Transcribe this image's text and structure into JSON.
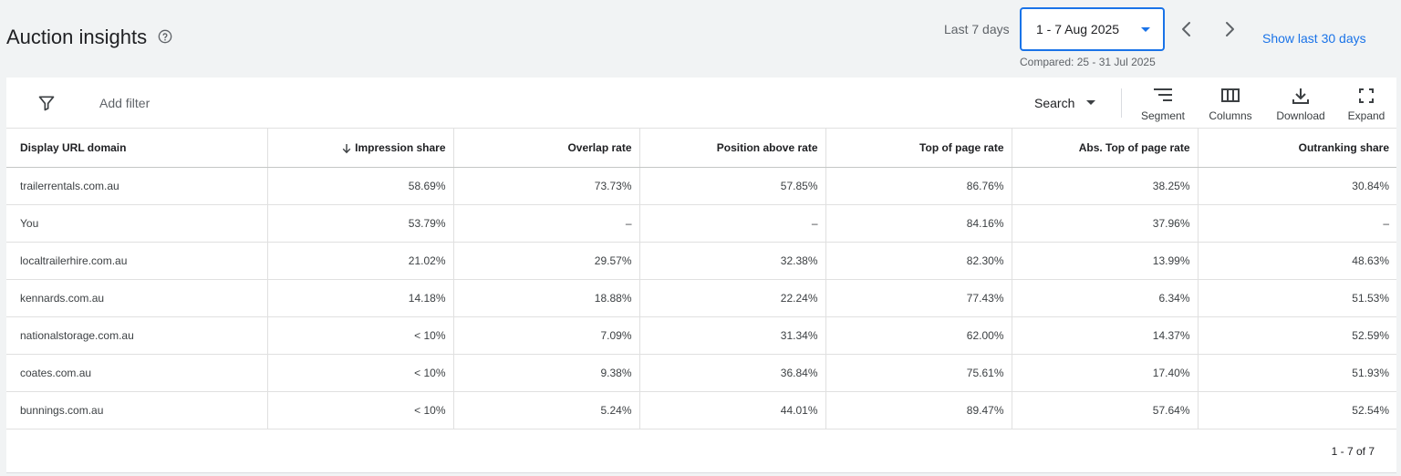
{
  "header": {
    "title": "Auction insights",
    "range_label": "Last 7 days",
    "date_range": "1 - 7 Aug 2025",
    "compared": "Compared: 25 - 31 Jul 2025",
    "show_30_label": "Show last 30 days"
  },
  "toolbar": {
    "add_filter": "Add filter",
    "segment_select": "Search",
    "segment_label": "Segment",
    "columns_label": "Columns",
    "download_label": "Download",
    "expand_label": "Expand"
  },
  "table": {
    "columns": [
      "Display URL domain",
      "Impression share",
      "Overlap rate",
      "Position above rate",
      "Top of page rate",
      "Abs. Top of page rate",
      "Outranking share"
    ],
    "sorted_column": "Impression share",
    "rows": [
      [
        "trailerrentals.com.au",
        "58.69%",
        "73.73%",
        "57.85%",
        "86.76%",
        "38.25%",
        "30.84%"
      ],
      [
        "You",
        "53.79%",
        "–",
        "–",
        "84.16%",
        "37.96%",
        "–"
      ],
      [
        "localtrailerhire.com.au",
        "21.02%",
        "29.57%",
        "32.38%",
        "82.30%",
        "13.99%",
        "48.63%"
      ],
      [
        "kennards.com.au",
        "14.18%",
        "18.88%",
        "22.24%",
        "77.43%",
        "6.34%",
        "51.53%"
      ],
      [
        "nationalstorage.com.au",
        "< 10%",
        "7.09%",
        "31.34%",
        "62.00%",
        "14.37%",
        "52.59%"
      ],
      [
        "coates.com.au",
        "< 10%",
        "9.38%",
        "36.84%",
        "75.61%",
        "17.40%",
        "51.93%"
      ],
      [
        "bunnings.com.au",
        "< 10%",
        "5.24%",
        "44.01%",
        "89.47%",
        "57.64%",
        "52.54%"
      ]
    ]
  },
  "pager": {
    "text": "1 - 7 of 7"
  },
  "colors": {
    "accent": "#1a73e8",
    "background": "#f1f3f4",
    "text": "#202124",
    "muted": "#5f6368"
  }
}
